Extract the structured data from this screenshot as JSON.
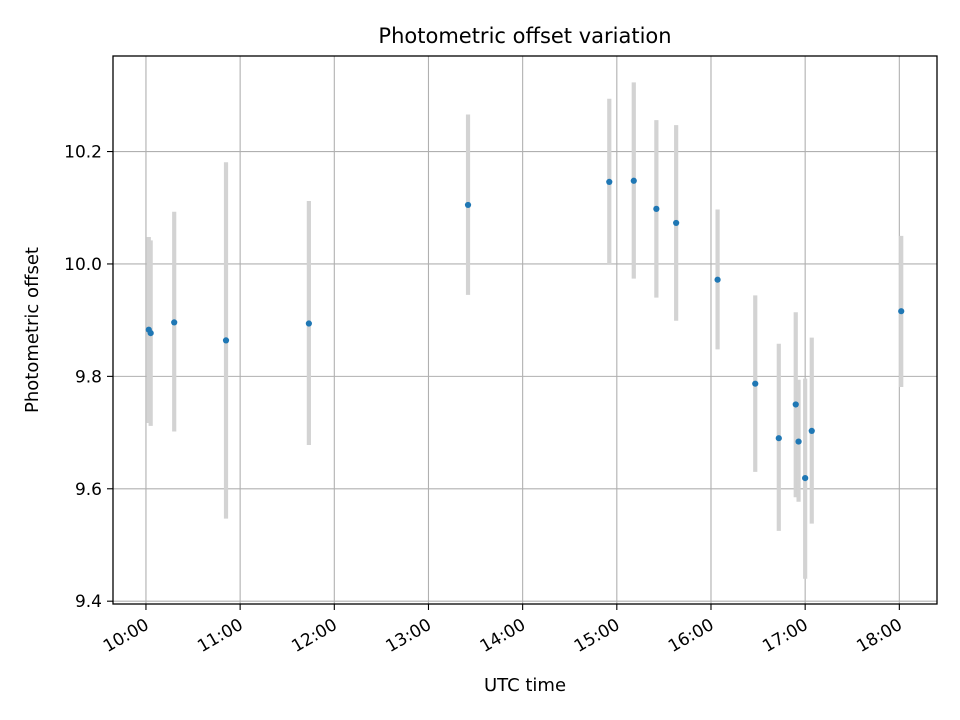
{
  "chart_data": {
    "type": "scatter",
    "title": "Photometric offset variation",
    "xlabel": "UTC time",
    "ylabel": "Photometric offset",
    "x_unit": "hours (UTC)",
    "xlim": [
      9.65,
      18.4
    ],
    "ylim": [
      9.395,
      10.37
    ],
    "x_ticks": [
      {
        "value": 10,
        "label": "10:00"
      },
      {
        "value": 11,
        "label": "11:00"
      },
      {
        "value": 12,
        "label": "12:00"
      },
      {
        "value": 13,
        "label": "13:00"
      },
      {
        "value": 14,
        "label": "14:00"
      },
      {
        "value": 15,
        "label": "15:00"
      },
      {
        "value": 16,
        "label": "16:00"
      },
      {
        "value": 17,
        "label": "17:00"
      },
      {
        "value": 18,
        "label": "18:00"
      }
    ],
    "y_ticks": [
      {
        "value": 9.4,
        "label": "9.4"
      },
      {
        "value": 9.6,
        "label": "9.6"
      },
      {
        "value": 9.8,
        "label": "9.8"
      },
      {
        "value": 10.0,
        "label": "10.0"
      },
      {
        "value": 10.2,
        "label": "10.2"
      }
    ],
    "grid": true,
    "marker_color": "#1f77b4",
    "errorbar_color": "#d3d3d3",
    "points": [
      {
        "x": 10.03,
        "y": 9.883,
        "err_low": 9.717,
        "err_high": 10.048
      },
      {
        "x": 10.05,
        "y": 9.877,
        "err_low": 9.712,
        "err_high": 10.042
      },
      {
        "x": 10.3,
        "y": 9.896,
        "err_low": 9.702,
        "err_high": 10.093
      },
      {
        "x": 10.85,
        "y": 9.864,
        "err_low": 9.547,
        "err_high": 10.181
      },
      {
        "x": 11.73,
        "y": 9.894,
        "err_low": 9.678,
        "err_high": 10.112
      },
      {
        "x": 13.42,
        "y": 10.105,
        "err_low": 9.945,
        "err_high": 10.266
      },
      {
        "x": 14.92,
        "y": 10.146,
        "err_low": 10.0,
        "err_high": 10.294
      },
      {
        "x": 15.18,
        "y": 10.148,
        "err_low": 9.974,
        "err_high": 10.323
      },
      {
        "x": 15.42,
        "y": 10.098,
        "err_low": 9.94,
        "err_high": 10.256
      },
      {
        "x": 15.63,
        "y": 10.073,
        "err_low": 9.899,
        "err_high": 10.247
      },
      {
        "x": 16.07,
        "y": 9.972,
        "err_low": 9.848,
        "err_high": 10.097
      },
      {
        "x": 16.47,
        "y": 9.787,
        "err_low": 9.63,
        "err_high": 9.944
      },
      {
        "x": 16.72,
        "y": 9.69,
        "err_low": 9.525,
        "err_high": 9.858
      },
      {
        "x": 16.9,
        "y": 9.75,
        "err_low": 9.585,
        "err_high": 9.914
      },
      {
        "x": 16.93,
        "y": 9.684,
        "err_low": 9.577,
        "err_high": 9.794
      },
      {
        "x": 17.0,
        "y": 9.619,
        "err_low": 9.44,
        "err_high": 9.796
      },
      {
        "x": 17.07,
        "y": 9.703,
        "err_low": 9.538,
        "err_high": 9.869
      },
      {
        "x": 18.02,
        "y": 9.916,
        "err_low": 9.781,
        "err_high": 10.05
      }
    ]
  }
}
